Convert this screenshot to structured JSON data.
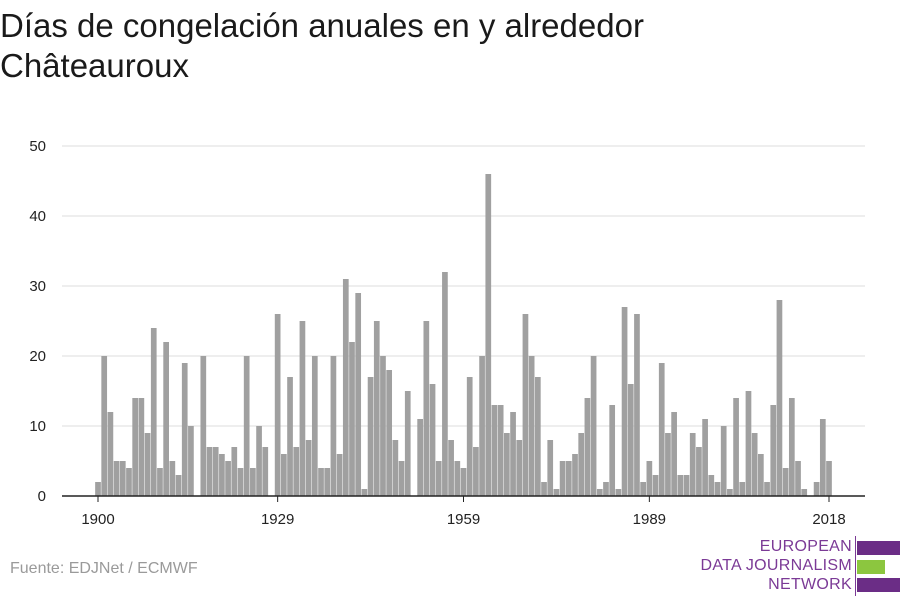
{
  "title": "Días de congelación anuales en y alrededor Châteauroux",
  "source": "Fuente: EDJNet / ECMWF",
  "logo": {
    "lines": [
      "EUROPEAN",
      "DATA JOURNALISM",
      "NETWORK"
    ]
  },
  "colors": {
    "bar": "#a0a0a0",
    "grid": "#dcdcdc",
    "axis": "#222222",
    "logo_purple": "#6b2d86",
    "logo_green": "#8cc63f"
  },
  "chart_data": {
    "type": "bar",
    "xlabel": "",
    "ylabel": "",
    "ylim": [
      0,
      50
    ],
    "yticks": [
      0,
      10,
      20,
      30,
      40,
      50
    ],
    "xticks": [
      1900,
      1929,
      1959,
      1989,
      2018
    ],
    "grid": true,
    "x_start": 1900,
    "x_end": 2018,
    "values": [
      2,
      20,
      12,
      5,
      5,
      4,
      14,
      14,
      9,
      24,
      4,
      22,
      5,
      3,
      19,
      10,
      0,
      20,
      7,
      7,
      6,
      5,
      7,
      4,
      20,
      4,
      10,
      7,
      0,
      26,
      6,
      17,
      7,
      25,
      8,
      20,
      4,
      4,
      20,
      6,
      31,
      22,
      29,
      1,
      17,
      25,
      20,
      18,
      8,
      5,
      15,
      0,
      11,
      25,
      16,
      5,
      32,
      8,
      5,
      4,
      17,
      7,
      20,
      46,
      13,
      13,
      9,
      12,
      8,
      26,
      20,
      17,
      2,
      8,
      1,
      5,
      5,
      6,
      9,
      14,
      20,
      1,
      2,
      13,
      1,
      27,
      16,
      26,
      2,
      5,
      3,
      19,
      9,
      12,
      3,
      3,
      9,
      7,
      11,
      3,
      2,
      10,
      1,
      14,
      2,
      15,
      9,
      6,
      2,
      13,
      28,
      4,
      14,
      5,
      1,
      0,
      2,
      11,
      5
    ]
  }
}
